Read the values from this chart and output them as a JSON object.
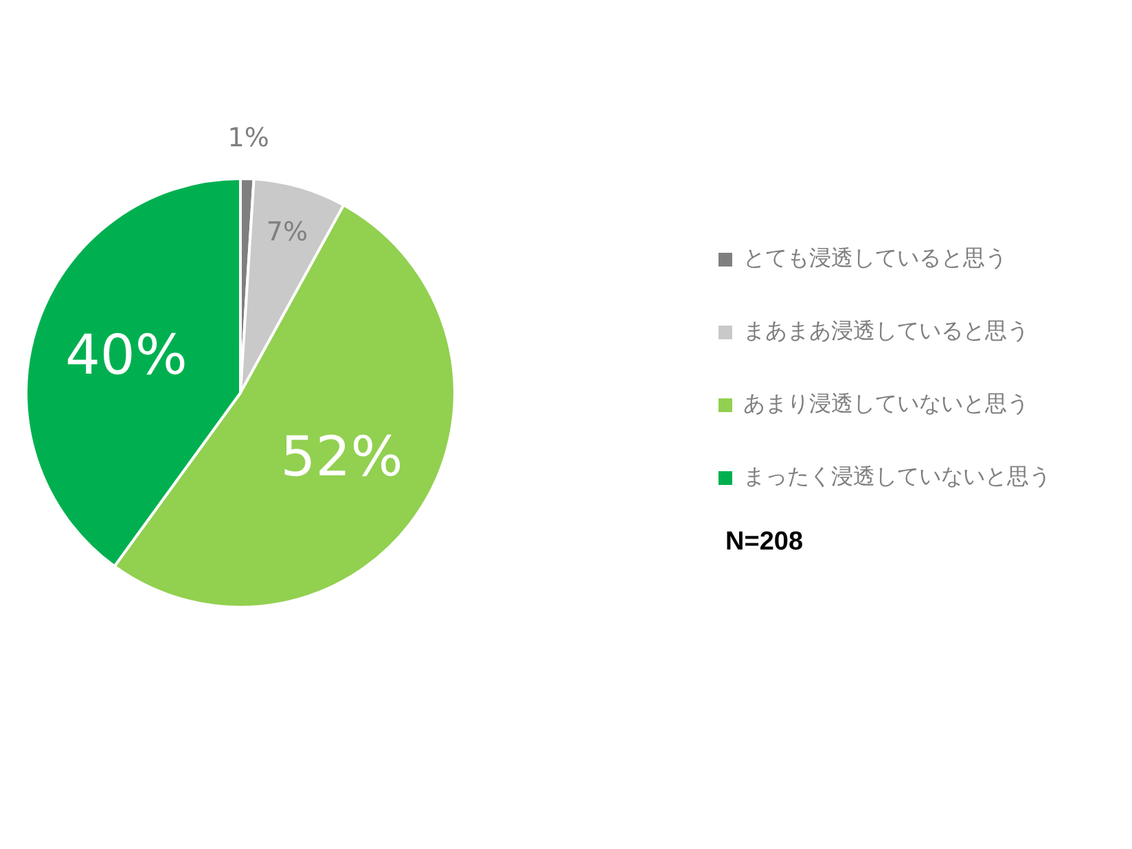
{
  "chart_data": {
    "type": "pie",
    "categories": [
      "とても浸透していると思う",
      "まあまあ浸透していると思う",
      "あまり浸透していないと思う",
      "まったく浸透していないと思う"
    ],
    "values": [
      1,
      7,
      52,
      40
    ],
    "colors": [
      "#7f7f7f",
      "#c9c9c9",
      "#92d050",
      "#00b050"
    ],
    "value_labels": [
      "1%",
      "7%",
      "52%",
      "40%"
    ],
    "legend": "right",
    "annotations": [
      "N=208"
    ]
  }
}
